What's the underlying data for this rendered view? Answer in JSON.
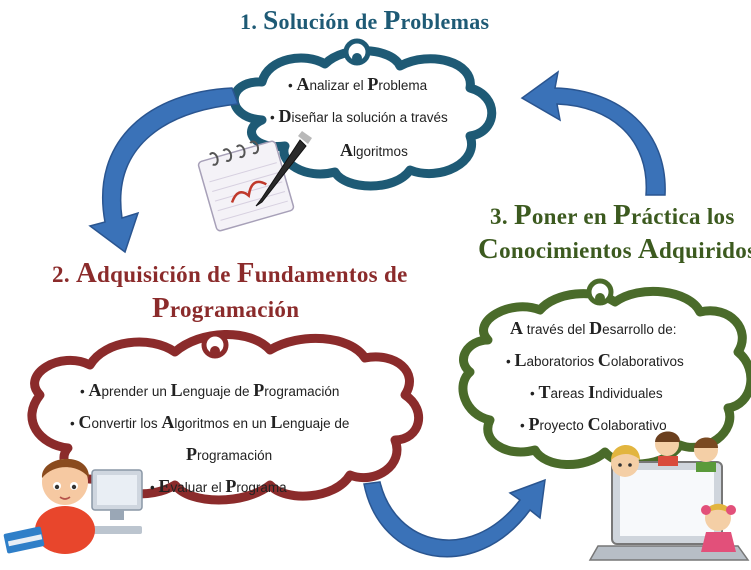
{
  "colors": {
    "stage1": "#1e5a75",
    "stage2": "#8b2b2b",
    "stage3": "#3c5a1f",
    "arrow": "#3a72b8"
  },
  "stage1": {
    "title": "1. Solución de Problemas",
    "bullets": [
      "Analizar el Problema",
      "Diseñar la solución a través"
    ],
    "continuation": "Algoritmos"
  },
  "stage2": {
    "title_line1": "2. Adquisición de Fundamentos de",
    "title_line2": "Programación",
    "bullets": [
      "Aprender un Lenguaje de Programación",
      "Convertir los Algoritmos en un Lenguaje de"
    ],
    "continuation": "Programación",
    "bullet3": "Evaluar el Programa"
  },
  "stage3": {
    "title_line1": "3. Poner en Práctica los",
    "title_line2": "Conocimientos Adquiridos",
    "intro": "A través del Desarrollo de:",
    "bullets": [
      "Laboratorios Colaborativos",
      "Tareas Individuales",
      "Proyecto Colaborativo"
    ]
  },
  "icons": [
    "notepad-pen-icon",
    "child-computer-icon",
    "kids-laptop-icon"
  ]
}
